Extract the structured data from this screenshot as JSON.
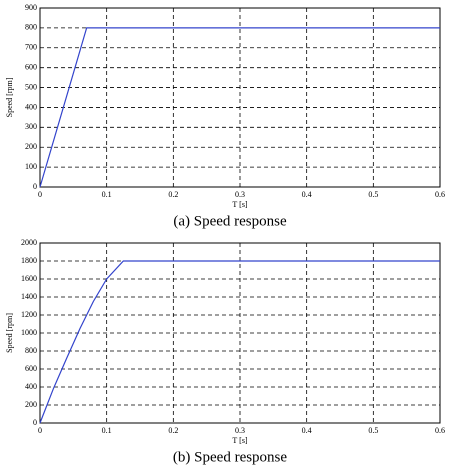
{
  "chart_data": [
    {
      "type": "line",
      "title": "(a)  Speed response",
      "xlabel": "T [s]",
      "ylabel": "Speed [rpm]",
      "x": [
        0,
        0.07,
        0.6
      ],
      "series": [
        {
          "name": "Speed",
          "color": "#3344cc",
          "values": [
            0,
            800,
            800
          ]
        }
      ],
      "xlim": [
        0,
        0.6
      ],
      "xticks": [
        0,
        0.1,
        0.2,
        0.3,
        0.4,
        0.5,
        0.6
      ],
      "ylim": [
        0,
        900
      ],
      "yticks": [
        0,
        100,
        200,
        300,
        400,
        500,
        600,
        700,
        800,
        900
      ],
      "grid": true
    },
    {
      "type": "line",
      "title": "(b)  Speed response",
      "xlabel": "T [s]",
      "ylabel": "Speed [rpm]",
      "x": [
        0,
        0.02,
        0.04,
        0.06,
        0.08,
        0.1,
        0.125,
        0.6
      ],
      "series": [
        {
          "name": "Speed",
          "color": "#3344cc",
          "values": [
            0,
            380,
            720,
            1050,
            1350,
            1600,
            1800,
            1800
          ]
        }
      ],
      "xlim": [
        0,
        0.6
      ],
      "xticks": [
        0,
        0.1,
        0.2,
        0.3,
        0.4,
        0.5,
        0.6
      ],
      "ylim": [
        0,
        2000
      ],
      "yticks": [
        0,
        200,
        400,
        600,
        800,
        1000,
        1200,
        1400,
        1600,
        1800,
        2000
      ],
      "grid": true
    }
  ]
}
